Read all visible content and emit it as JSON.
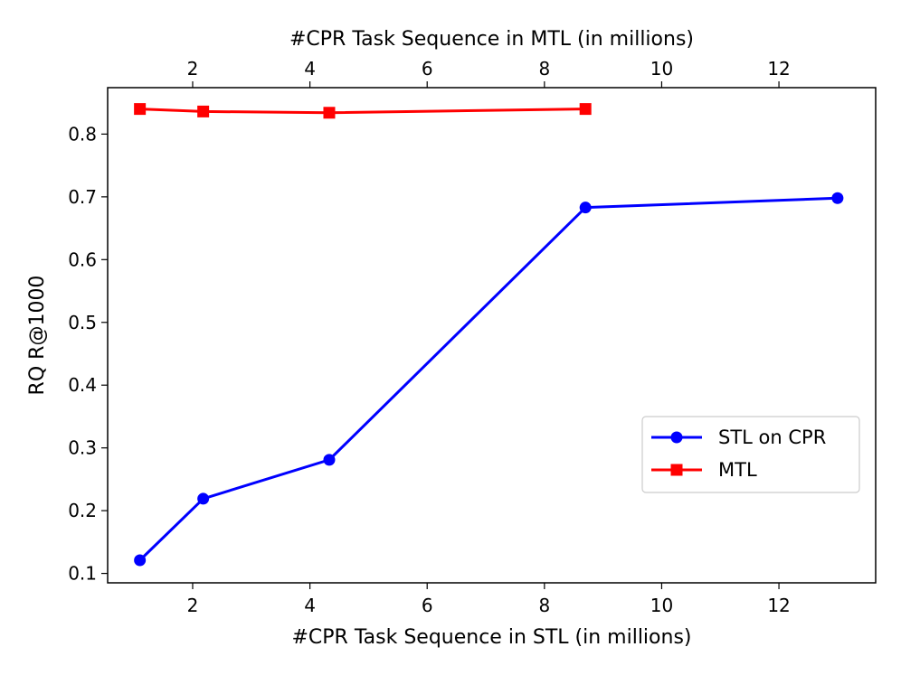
{
  "chart_data": {
    "type": "line",
    "xlabel": "#CPR Task Sequence in STL (in millions)",
    "x2label": "#CPR Task Sequence in MTL (in millions)",
    "ylabel": "RQ R@1000",
    "xlim": [
      0.55,
      13.65
    ],
    "ylim": [
      0.085,
      0.874
    ],
    "xticks": [
      2,
      4,
      6,
      8,
      10,
      12
    ],
    "yticks": [
      0.1,
      0.2,
      0.3,
      0.4,
      0.5,
      0.6,
      0.7,
      0.8
    ],
    "xtick_labels": [
      "2",
      "4",
      "6",
      "8",
      "10",
      "12"
    ],
    "x2tick_labels": [
      "2",
      "4",
      "6",
      "8",
      "10",
      "12"
    ],
    "ytick_labels": [
      "0.1",
      "0.2",
      "0.3",
      "0.4",
      "0.5",
      "0.6",
      "0.7",
      "0.8"
    ],
    "legend_position": "lower-right",
    "series": [
      {
        "name": "STL on CPR",
        "color": "#0000ff",
        "marker": "circle",
        "x": [
          1.1,
          2.18,
          4.33,
          8.7,
          13.0
        ],
        "values": [
          0.121,
          0.219,
          0.281,
          0.683,
          0.698
        ]
      },
      {
        "name": "MTL",
        "color": "#ff0000",
        "marker": "square",
        "x": [
          1.1,
          2.18,
          4.33,
          8.7
        ],
        "values": [
          0.84,
          0.836,
          0.834,
          0.84
        ]
      }
    ]
  }
}
